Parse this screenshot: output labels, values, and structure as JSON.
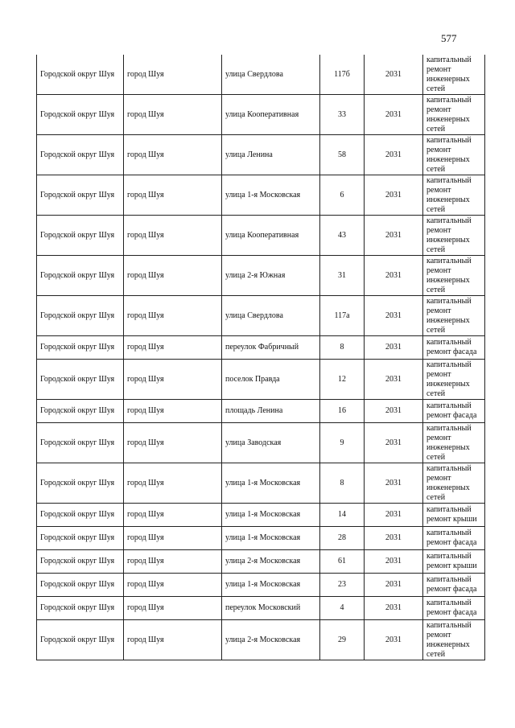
{
  "page_number": "577",
  "rows": [
    {
      "district": "Городской округ Шуя",
      "city": "город Шуя",
      "street": "улица Свердлова",
      "house": "117б",
      "year": "2031",
      "work": "капитальный ремонт инженерных сетей"
    },
    {
      "district": "Городской округ Шуя",
      "city": "город Шуя",
      "street": "улица Кооперативная",
      "house": "33",
      "year": "2031",
      "work": "капитальный ремонт инженерных сетей"
    },
    {
      "district": "Городской округ Шуя",
      "city": "город Шуя",
      "street": "улица Ленина",
      "house": "58",
      "year": "2031",
      "work": "капитальный ремонт инженерных сетей"
    },
    {
      "district": "Городской округ Шуя",
      "city": "город Шуя",
      "street": "улица 1-я Московская",
      "house": "6",
      "year": "2031",
      "work": "капитальный ремонт инженерных сетей"
    },
    {
      "district": "Городской округ Шуя",
      "city": "город Шуя",
      "street": "улица Кооперативная",
      "house": "43",
      "year": "2031",
      "work": "капитальный ремонт инженерных сетей"
    },
    {
      "district": "Городской округ Шуя",
      "city": "город Шуя",
      "street": "улица 2-я Южная",
      "house": "31",
      "year": "2031",
      "work": "капитальный ремонт инженерных сетей"
    },
    {
      "district": "Городской округ Шуя",
      "city": "город Шуя",
      "street": "улица Свердлова",
      "house": "117а",
      "year": "2031",
      "work": "капитальный ремонт инженерных сетей"
    },
    {
      "district": "Городской округ Шуя",
      "city": "город Шуя",
      "street": "переулок Фабричный",
      "house": "8",
      "year": "2031",
      "work": "капитальный ремонт фасада"
    },
    {
      "district": "Городской округ Шуя",
      "city": "город Шуя",
      "street": "поселок Правда",
      "house": "12",
      "year": "2031",
      "work": "капитальный ремонт инженерных сетей"
    },
    {
      "district": "Городской округ Шуя",
      "city": "город Шуя",
      "street": "площадь Ленина",
      "house": "16",
      "year": "2031",
      "work": "капитальный ремонт фасада"
    },
    {
      "district": "Городской округ Шуя",
      "city": "город Шуя",
      "street": "улица Заводская",
      "house": "9",
      "year": "2031",
      "work": "капитальный ремонт инженерных сетей"
    },
    {
      "district": "Городской округ Шуя",
      "city": "город Шуя",
      "street": "улица 1-я  Московская",
      "house": "8",
      "year": "2031",
      "work": "капитальный ремонт инженерных сетей"
    },
    {
      "district": "Городской округ Шуя",
      "city": "город Шуя",
      "street": "улица 1-я  Московская",
      "house": "14",
      "year": "2031",
      "work": "капитальный ремонт крыши"
    },
    {
      "district": "Городской округ Шуя",
      "city": "город Шуя",
      "street": "улица 1-я  Московская",
      "house": "28",
      "year": "2031",
      "work": "капитальный ремонт фасада"
    },
    {
      "district": "Городской округ Шуя",
      "city": "город Шуя",
      "street": "улица 2-я Московская",
      "house": "61",
      "year": "2031",
      "work": "капитальный ремонт крыши"
    },
    {
      "district": "Городской округ Шуя",
      "city": "город Шуя",
      "street": "улица 1-я  Московская",
      "house": "23",
      "year": "2031",
      "work": "капитальный ремонт фасада"
    },
    {
      "district": "Городской округ Шуя",
      "city": "город Шуя",
      "street": "переулок  Московский",
      "house": "4",
      "year": "2031",
      "work": "капитальный ремонт фасада"
    },
    {
      "district": "Городской округ Шуя",
      "city": "город Шуя",
      "street": "улица 2-я Московская",
      "house": "29",
      "year": "2031",
      "work": "капитальный ремонт инженерных сетей"
    }
  ]
}
